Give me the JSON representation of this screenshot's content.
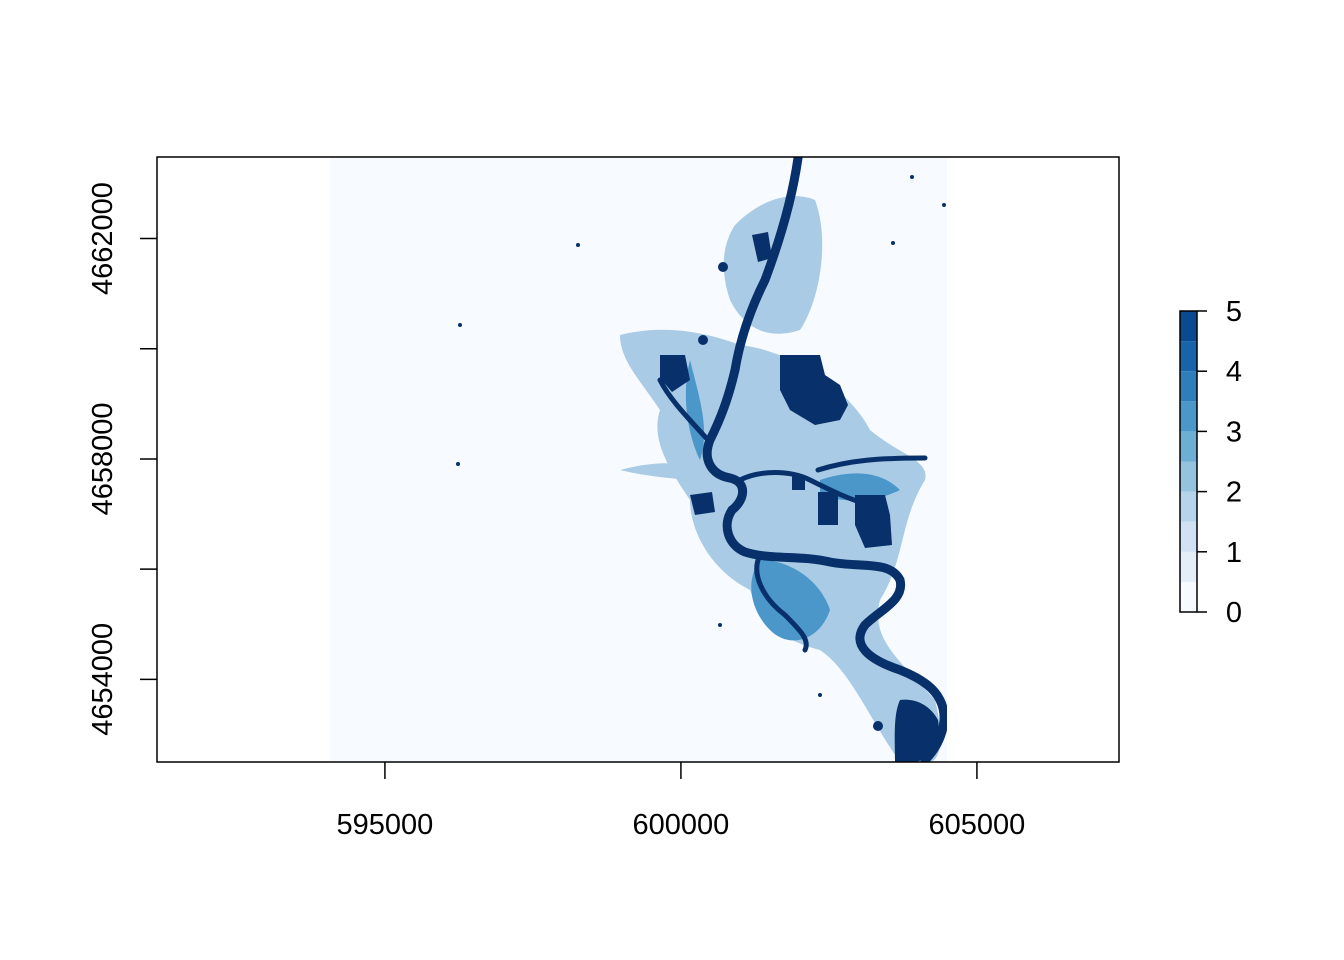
{
  "chart_data": {
    "type": "heatmap",
    "title": "",
    "xlabel": "",
    "ylabel": "",
    "xlim": [
      591150,
      607400
    ],
    "ylim": [
      4652500,
      4663480
    ],
    "raster_extent": {
      "x": [
        594100,
        604500
      ],
      "y": [
        4652500,
        4663480
      ]
    },
    "x_ticks": [
      595000,
      600000,
      605000
    ],
    "x_tick_labels": [
      "595000",
      "600000",
      "605000"
    ],
    "y_ticks": [
      4654000,
      4656000,
      4658000,
      4660000,
      4662000
    ],
    "y_tick_labels": [
      "4654000",
      "",
      "4658000",
      "",
      "4662000"
    ],
    "value_range": [
      0,
      5
    ],
    "legend": {
      "position": "right",
      "ticks": [
        0,
        1,
        2,
        3,
        4,
        5
      ],
      "tick_labels": [
        "0",
        "1",
        "2",
        "3",
        "4",
        "5"
      ],
      "breaks": [
        0,
        0.5,
        1,
        1.5,
        2,
        2.5,
        3,
        3.5,
        4,
        4.5,
        5
      ],
      "colors": [
        "#f7fbff",
        "#e3eef9",
        "#cfe1f2",
        "#b5d4e9",
        "#93c3df",
        "#6daed5",
        "#4b97c9",
        "#2f7ebc",
        "#1864aa",
        "#0a4a90",
        "#08306b"
      ]
    },
    "background_value_color": "#f7fbff",
    "water_color": "#08306b",
    "shallow_color": "#a9cbe5"
  }
}
